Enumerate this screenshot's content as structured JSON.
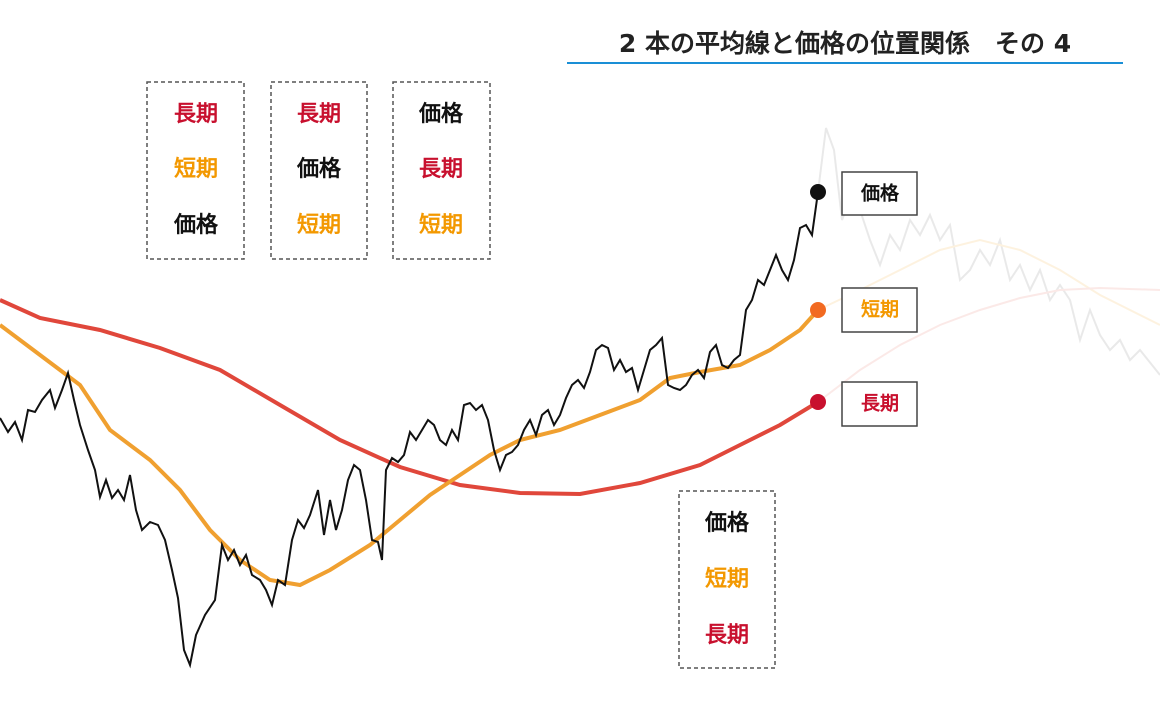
{
  "title": "2 本の平均線と価格の位置関係　その 4",
  "boxes": [
    {
      "labels": [
        {
          "text": "長期",
          "color": "#c8102e"
        },
        {
          "text": "短期",
          "color": "#f39800"
        },
        {
          "text": "価格",
          "color": "#111111"
        }
      ]
    },
    {
      "labels": [
        {
          "text": "長期",
          "color": "#c8102e"
        },
        {
          "text": "価格",
          "color": "#111111"
        },
        {
          "text": "短期",
          "color": "#f39800"
        }
      ]
    },
    {
      "labels": [
        {
          "text": "価格",
          "color": "#111111"
        },
        {
          "text": "長期",
          "color": "#c8102e"
        },
        {
          "text": "短期",
          "color": "#f39800"
        }
      ]
    },
    {
      "labels": [
        {
          "text": "価格",
          "color": "#111111"
        },
        {
          "text": "短期",
          "color": "#f39800"
        },
        {
          "text": "長期",
          "color": "#c8102e"
        }
      ]
    }
  ],
  "end_labels": [
    {
      "text": "価格",
      "color": "#111111"
    },
    {
      "text": "短期",
      "color": "#f39800"
    },
    {
      "text": "長期",
      "color": "#c8102e"
    }
  ]
}
